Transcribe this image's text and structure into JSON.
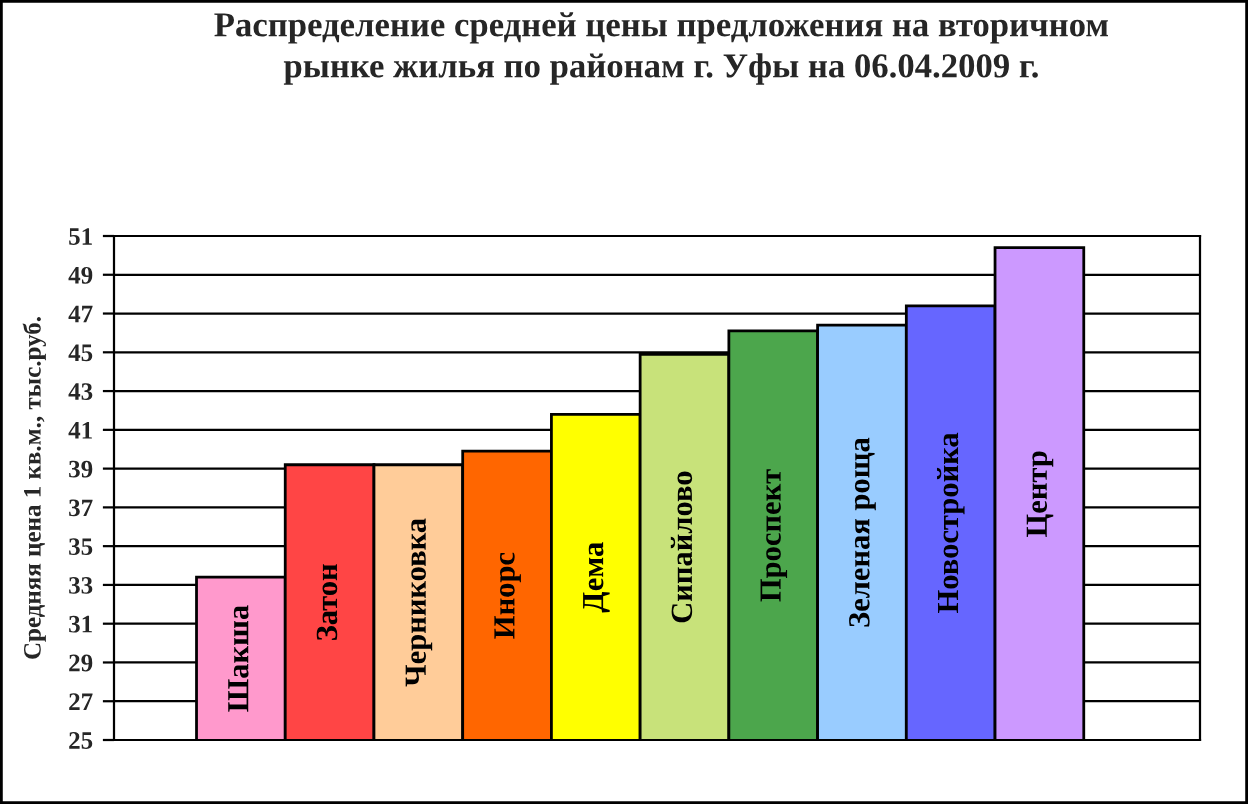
{
  "chart_data": {
    "type": "bar",
    "title": "Распределение средней цены предложения на вторичном\nрынке жилья по районам г. Уфы на 06.04.2009 г.",
    "ylabel": "Средняя цена 1 кв.м., тыс.руб.",
    "categories": [
      "Шакша",
      "Затон",
      "Черниковка",
      "Инорс",
      "Дема",
      "Сипайлово",
      "Проспект",
      "Зеленая роща",
      "Новостройка",
      "Центр"
    ],
    "values": [
      33.4,
      39.2,
      39.2,
      39.9,
      41.8,
      44.9,
      46.1,
      46.4,
      47.4,
      50.4
    ],
    "colors": [
      "#ff99cc",
      "#ff4545",
      "#ffcc99",
      "#ff6600",
      "#ffff00",
      "#c8e27a",
      "#4ca64c",
      "#99ccff",
      "#6666ff",
      "#cc99ff"
    ],
    "ylim": [
      25,
      51
    ],
    "yticks": [
      25,
      27,
      29,
      31,
      33,
      35,
      37,
      39,
      41,
      43,
      45,
      47,
      49,
      51
    ],
    "grid": "y",
    "tick_labels": "y"
  }
}
